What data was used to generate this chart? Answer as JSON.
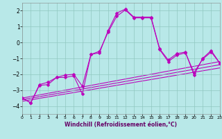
{
  "xlabel": "Windchill (Refroidissement éolien,°C)",
  "xlim": [
    0,
    23
  ],
  "ylim": [
    -4.5,
    2.5
  ],
  "yticks": [
    -4,
    -3,
    -2,
    -1,
    0,
    1,
    2
  ],
  "xticks": [
    0,
    1,
    2,
    3,
    4,
    5,
    6,
    7,
    8,
    9,
    10,
    11,
    12,
    13,
    14,
    15,
    16,
    17,
    18,
    19,
    20,
    21,
    22,
    23
  ],
  "background_color": "#b8e8e8",
  "grid_color": "#90c8c0",
  "line_color": "#bb00bb",
  "line1_x": [
    0,
    1,
    2,
    3,
    4,
    5,
    6,
    7,
    8,
    9,
    10,
    11,
    12,
    13,
    14,
    15,
    16,
    17,
    18,
    19,
    20,
    21,
    22,
    23
  ],
  "line1_y": [
    -3.5,
    -3.8,
    -2.7,
    -2.65,
    -2.2,
    -2.2,
    -2.1,
    -3.25,
    -0.75,
    -0.65,
    0.75,
    1.85,
    2.1,
    1.6,
    1.6,
    1.6,
    -0.4,
    -1.1,
    -0.7,
    -0.6,
    -2.05,
    -1.0,
    -0.5,
    -1.3
  ],
  "line2_x": [
    0,
    1,
    2,
    3,
    4,
    5,
    6,
    7,
    8,
    9,
    10,
    11,
    12,
    13,
    14,
    15,
    16,
    17,
    18,
    19,
    20,
    21,
    22,
    23
  ],
  "line2_y": [
    -3.5,
    -3.8,
    -2.65,
    -2.5,
    -2.2,
    -2.05,
    -2.0,
    -2.75,
    -0.75,
    -0.55,
    0.65,
    1.65,
    2.05,
    1.55,
    1.55,
    1.55,
    -0.45,
    -1.2,
    -0.8,
    -0.65,
    -1.9,
    -1.05,
    -0.6,
    -1.3
  ],
  "trend_lines": [
    {
      "x": [
        0,
        23
      ],
      "y": [
        -3.5,
        -1.2
      ]
    },
    {
      "x": [
        0,
        23
      ],
      "y": [
        -3.6,
        -1.4
      ]
    },
    {
      "x": [
        0,
        23
      ],
      "y": [
        -3.7,
        -1.6
      ]
    }
  ],
  "marker_size": 2.5,
  "line_width": 0.8,
  "xlabel_color": "#660066",
  "xlabel_fontsize": 5.5
}
